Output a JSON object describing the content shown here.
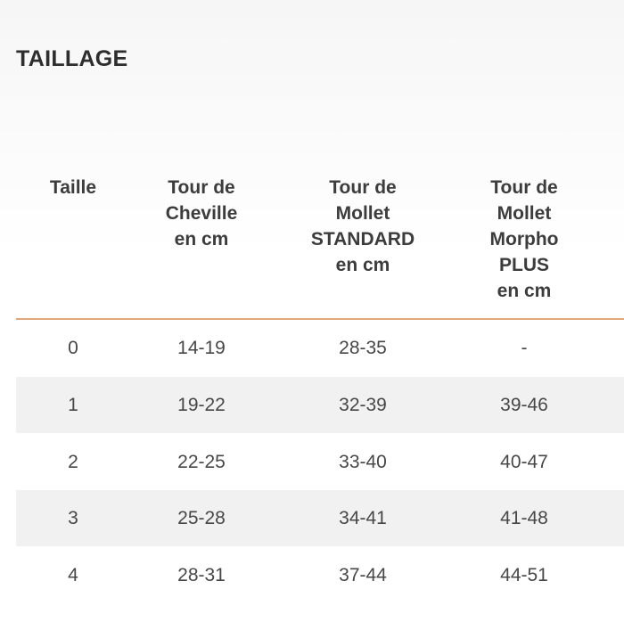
{
  "header": {
    "title": "TAILLAGE"
  },
  "table": {
    "headers": [
      [
        "Taille"
      ],
      [
        "Tour de",
        "Cheville",
        "en cm"
      ],
      [
        "Tour de",
        "Mollet",
        "STANDARD",
        "en cm"
      ],
      [
        "Tour de",
        "Mollet",
        "Morpho",
        "PLUS",
        "en cm"
      ]
    ],
    "rows": [
      [
        "0",
        "14-19",
        "28-35",
        "-"
      ],
      [
        "1",
        "19-22",
        "32-39",
        "39-46"
      ],
      [
        "2",
        "22-25",
        "33-40",
        "40-47"
      ],
      [
        "3",
        "25-28",
        "34-41",
        "41-48"
      ],
      [
        "4",
        "28-31",
        "37-44",
        "44-51"
      ]
    ]
  }
}
